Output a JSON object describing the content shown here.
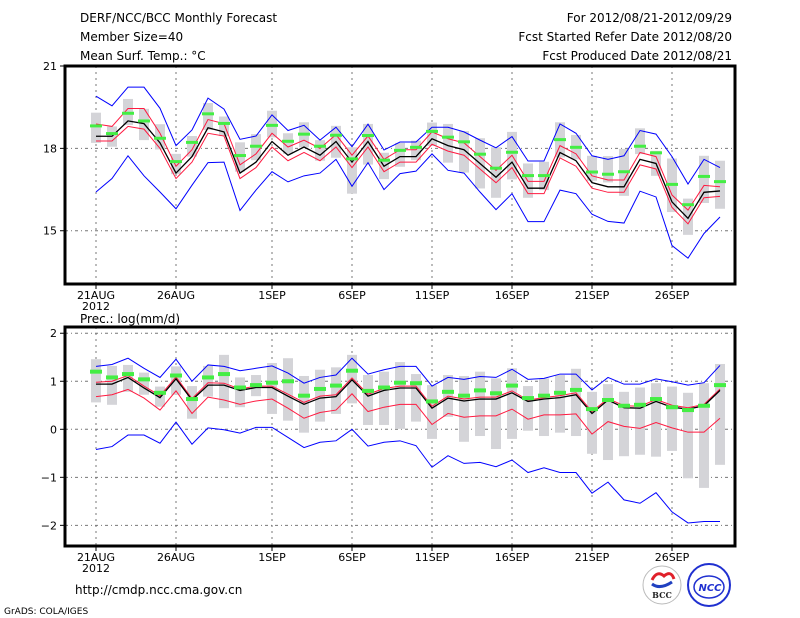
{
  "header": {
    "title": "DERF/NCC/BCC Monthly Forecast",
    "member_size": "Member Size=40",
    "period": "For 2012/08/21-2012/09/29",
    "started": "Fcst Started Refer Date 2012/08/20",
    "produced": "Fcst Produced Date 2012/08/21"
  },
  "footer": {
    "url": "http://cmdp.ncc.cma.gov.cn",
    "credit": "GrADS: COLA/IGES",
    "logo_bcc": "BCC",
    "logo_ncc": "NCC"
  },
  "colors": {
    "mean": "#000000",
    "spread": "#ff1a40",
    "extreme": "#0000ff",
    "control": "#44ee44",
    "box": "#d4d4d8"
  },
  "chart_data": [
    {
      "type": "line",
      "title": "Mean Surf. Temp.: °C",
      "ylim": [
        13.06,
        21
      ],
      "yticks": [
        15,
        18,
        21
      ],
      "ytick_labels": [
        "15",
        "18",
        "21"
      ],
      "x_start": "2012-08-21",
      "n_days": 40,
      "xtick_index": [
        0,
        5,
        11,
        16,
        21,
        26,
        31,
        36
      ],
      "xtick_labels": [
        "21AUG",
        "26AUG",
        "1SEP",
        "6SEP",
        "11SEP",
        "16SEP",
        "21SEP",
        "26SEP"
      ],
      "xtick_year": "2012",
      "grid": true,
      "series": {
        "mean": [
          18.44,
          18.44,
          19.0,
          18.9,
          18.2,
          17.1,
          17.7,
          18.75,
          18.6,
          17.1,
          17.5,
          18.25,
          17.75,
          18.05,
          17.75,
          18.25,
          17.5,
          18.25,
          17.35,
          17.7,
          17.7,
          18.35,
          18.1,
          17.95,
          17.45,
          16.95,
          17.5,
          16.55,
          16.55,
          17.85,
          17.55,
          16.75,
          16.6,
          16.6,
          17.6,
          17.45,
          16.05,
          15.45,
          16.4,
          16.45
        ],
        "upper": [
          18.89,
          18.8,
          19.45,
          19.45,
          18.55,
          17.35,
          17.95,
          19.05,
          18.9,
          17.4,
          17.8,
          18.55,
          18.05,
          18.3,
          18.0,
          18.5,
          17.75,
          18.45,
          17.6,
          17.95,
          17.95,
          18.6,
          18.35,
          18.2,
          17.7,
          17.2,
          17.75,
          16.8,
          16.8,
          18.1,
          17.8,
          17.0,
          16.85,
          16.85,
          17.85,
          17.7,
          16.3,
          15.75,
          16.65,
          16.6
        ],
        "lower": [
          18.27,
          18.27,
          18.8,
          18.7,
          18.0,
          16.9,
          17.5,
          18.55,
          18.45,
          16.9,
          17.3,
          18.05,
          17.55,
          17.85,
          17.55,
          18.05,
          17.3,
          18.05,
          17.15,
          17.5,
          17.5,
          18.15,
          17.9,
          17.75,
          17.25,
          16.75,
          17.3,
          16.35,
          16.35,
          17.65,
          17.35,
          16.55,
          16.4,
          16.4,
          17.4,
          17.25,
          15.85,
          15.25,
          16.2,
          16.25
        ],
        "max": [
          19.9,
          19.55,
          20.23,
          20.23,
          19.46,
          18.1,
          18.67,
          19.83,
          19.43,
          18.33,
          18.45,
          19.22,
          18.65,
          18.84,
          18.3,
          18.77,
          18.06,
          18.88,
          17.94,
          18.23,
          18.23,
          18.77,
          18.77,
          18.6,
          18.3,
          18.02,
          18.43,
          17.54,
          17.54,
          18.89,
          18.55,
          17.73,
          17.6,
          17.73,
          18.65,
          18.52,
          17.7,
          16.7,
          17.6,
          17.3
        ],
        "min": [
          16.41,
          16.9,
          17.73,
          17.0,
          16.41,
          15.8,
          16.66,
          17.48,
          17.5,
          15.74,
          16.48,
          17.15,
          16.78,
          17.0,
          17.1,
          17.6,
          16.62,
          17.48,
          16.5,
          17.08,
          17.17,
          17.8,
          17.2,
          17.1,
          16.41,
          15.77,
          16.35,
          15.33,
          15.33,
          16.48,
          16.35,
          15.6,
          15.34,
          15.28,
          16.44,
          16.23,
          14.46,
          14.0,
          14.9,
          15.5
        ],
        "control": [
          18.8,
          18.52,
          19.26,
          18.98,
          18.35,
          17.5,
          18.2,
          19.24,
          18.89,
          17.72,
          18.06,
          18.82,
          18.24,
          18.5,
          18.06,
          18.46,
          17.6,
          18.45,
          17.55,
          17.91,
          18.02,
          18.6,
          18.39,
          18.22,
          17.77,
          17.26,
          17.84,
          16.99,
          16.99,
          18.3,
          18.02,
          17.12,
          17.04,
          17.13,
          18.06,
          17.82,
          16.67,
          15.93,
          16.96,
          16.77
        ],
        "box_high": [
          19.3,
          18.8,
          19.8,
          19.44,
          18.88,
          17.8,
          18.45,
          19.65,
          19.16,
          18.22,
          18.52,
          19.37,
          18.55,
          18.95,
          18.3,
          18.82,
          18.04,
          18.89,
          17.84,
          18.2,
          18.28,
          18.94,
          18.89,
          18.63,
          18.37,
          18.04,
          18.6,
          17.45,
          17.51,
          18.95,
          18.49,
          17.73,
          17.72,
          17.98,
          18.73,
          17.91,
          17.63,
          16.17,
          17.73,
          17.55
        ],
        "box_low": [
          18.2,
          18.06,
          18.85,
          18.3,
          17.96,
          17.06,
          17.7,
          18.67,
          18.45,
          17.15,
          17.57,
          18.4,
          17.8,
          18.04,
          17.55,
          17.66,
          16.35,
          17.41,
          16.88,
          17.33,
          17.57,
          18.09,
          17.48,
          17.12,
          16.54,
          16.2,
          16.87,
          16.2,
          16.48,
          17.67,
          17.6,
          16.82,
          16.76,
          16.27,
          17.79,
          17.0,
          15.68,
          14.85,
          16.01,
          15.8
        ]
      }
    },
    {
      "type": "line",
      "title": "Prec.: log(mm/d)",
      "ylim": [
        -2.43,
        2.13
      ],
      "yticks": [
        -2,
        -1,
        0,
        1,
        2
      ],
      "ytick_labels": [
        "−2",
        "−1",
        "0",
        "1",
        "2"
      ],
      "x_start": "2012-08-21",
      "n_days": 40,
      "xtick_index": [
        0,
        5,
        11,
        16,
        21,
        26,
        31,
        36
      ],
      "xtick_labels": [
        "21AUG",
        "26AUG",
        "1SEP",
        "6SEP",
        "11SEP",
        "16SEP",
        "21SEP",
        "26SEP"
      ],
      "xtick_year": "2012",
      "grid": true,
      "series": {
        "mean": [
          0.94,
          0.94,
          1.08,
          0.86,
          0.66,
          1.05,
          0.61,
          0.92,
          0.92,
          0.81,
          0.87,
          0.87,
          0.69,
          0.52,
          0.65,
          0.68,
          1.03,
          0.69,
          0.81,
          0.86,
          0.86,
          0.44,
          0.65,
          0.59,
          0.63,
          0.63,
          0.76,
          0.58,
          0.63,
          0.66,
          0.72,
          0.33,
          0.61,
          0.45,
          0.44,
          0.58,
          0.46,
          0.42,
          0.49,
          0.81
        ],
        "upper": [
          0.98,
          1.0,
          1.12,
          0.9,
          0.7,
          1.09,
          0.64,
          0.97,
          0.96,
          0.84,
          0.9,
          0.9,
          0.73,
          0.56,
          0.69,
          0.72,
          1.07,
          0.73,
          0.85,
          0.9,
          0.9,
          0.48,
          0.69,
          0.63,
          0.67,
          0.67,
          0.8,
          0.61,
          0.66,
          0.7,
          0.76,
          0.37,
          0.64,
          0.49,
          0.48,
          0.62,
          0.5,
          0.45,
          0.52,
          0.84
        ],
        "lower": [
          0.68,
          0.72,
          0.83,
          0.65,
          0.4,
          0.8,
          0.33,
          0.67,
          0.61,
          0.52,
          0.59,
          0.63,
          0.44,
          0.23,
          0.35,
          0.4,
          0.74,
          0.37,
          0.46,
          0.52,
          0.52,
          0.1,
          0.33,
          0.25,
          0.28,
          0.28,
          0.42,
          0.21,
          0.3,
          0.3,
          0.32,
          -0.1,
          0.16,
          0.06,
          0.02,
          0.14,
          0.03,
          -0.06,
          -0.06,
          0.23
        ],
        "max": [
          1.31,
          1.35,
          1.48,
          1.27,
          1.08,
          1.46,
          1.0,
          1.34,
          1.31,
          1.22,
          1.27,
          1.32,
          1.17,
          0.96,
          1.08,
          1.13,
          1.48,
          1.15,
          1.24,
          1.31,
          1.31,
          0.9,
          1.08,
          1.04,
          1.1,
          1.08,
          1.25,
          1.04,
          1.06,
          1.15,
          1.15,
          0.82,
          1.08,
          0.94,
          0.94,
          1.05,
          0.99,
          0.92,
          0.97,
          1.33
        ],
        "min": [
          -0.42,
          -0.36,
          -0.12,
          -0.12,
          -0.29,
          0.15,
          -0.31,
          0.03,
          -0.01,
          -0.08,
          0.04,
          0.04,
          -0.17,
          -0.38,
          -0.27,
          -0.24,
          0.0,
          -0.35,
          -0.27,
          -0.24,
          -0.34,
          -0.79,
          -0.55,
          -0.71,
          -0.69,
          -0.78,
          -0.64,
          -0.9,
          -0.8,
          -0.9,
          -0.9,
          -1.33,
          -1.1,
          -1.47,
          -1.54,
          -1.32,
          -1.72,
          -1.95,
          -1.92,
          -1.92
        ],
        "control": [
          1.2,
          1.08,
          1.15,
          1.04,
          0.76,
          1.12,
          0.63,
          1.08,
          1.15,
          0.87,
          0.92,
          0.97,
          1.0,
          0.7,
          0.84,
          0.91,
          1.22,
          0.8,
          0.87,
          0.97,
          0.96,
          0.58,
          0.78,
          0.7,
          0.81,
          0.75,
          0.91,
          0.65,
          0.7,
          0.76,
          0.82,
          0.42,
          0.61,
          0.49,
          0.51,
          0.63,
          0.46,
          0.4,
          0.49,
          0.92
        ],
        "box_high": [
          1.46,
          1.32,
          1.34,
          1.18,
          0.89,
          1.31,
          0.9,
          1.32,
          1.55,
          1.08,
          1.13,
          1.38,
          1.48,
          1.11,
          1.24,
          1.29,
          1.55,
          1.13,
          1.2,
          1.4,
          1.15,
          0.92,
          1.13,
          1.11,
          1.2,
          1.06,
          1.27,
          0.9,
          1.06,
          1.13,
          1.26,
          0.78,
          0.94,
          0.78,
          0.87,
          0.96,
          0.89,
          0.76,
          0.96,
          1.36
        ],
        "box_low": [
          0.56,
          0.51,
          0.78,
          0.72,
          0.47,
          0.72,
          0.22,
          0.68,
          0.44,
          0.46,
          0.69,
          0.32,
          0.18,
          -0.07,
          0.16,
          0.32,
          0.54,
          0.09,
          0.09,
          0.01,
          0.16,
          -0.2,
          0.26,
          -0.26,
          -0.14,
          -0.41,
          -0.2,
          -0.03,
          -0.14,
          -0.07,
          -0.14,
          -0.51,
          -0.64,
          -0.56,
          -0.53,
          -0.57,
          -0.45,
          -1.02,
          -1.22,
          -0.74
        ]
      }
    }
  ]
}
